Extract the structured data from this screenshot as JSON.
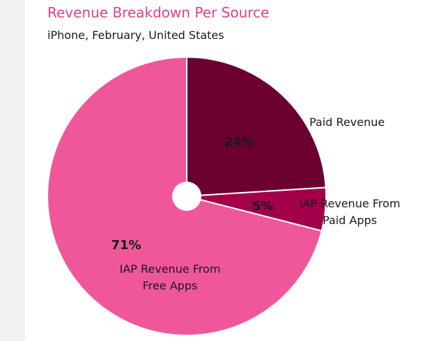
{
  "chart_data": {
    "type": "pie",
    "title": "Revenue Breakdown Per Source",
    "subtitle": "iPhone, February, United States",
    "slices": [
      {
        "label_lines": [
          "Paid Revenue"
        ],
        "value": 24,
        "display": "24%",
        "color": "#6b0030"
      },
      {
        "label_lines": [
          "IAP Revenue From",
          "Paid Apps"
        ],
        "value": 5,
        "display": "5%",
        "color": "#a3004a"
      },
      {
        "label_lines": [
          "IAP Revenue From",
          "Free Apps"
        ],
        "value": 71,
        "display": "71%",
        "color": "#f0579a"
      }
    ],
    "donut_hole": true
  }
}
